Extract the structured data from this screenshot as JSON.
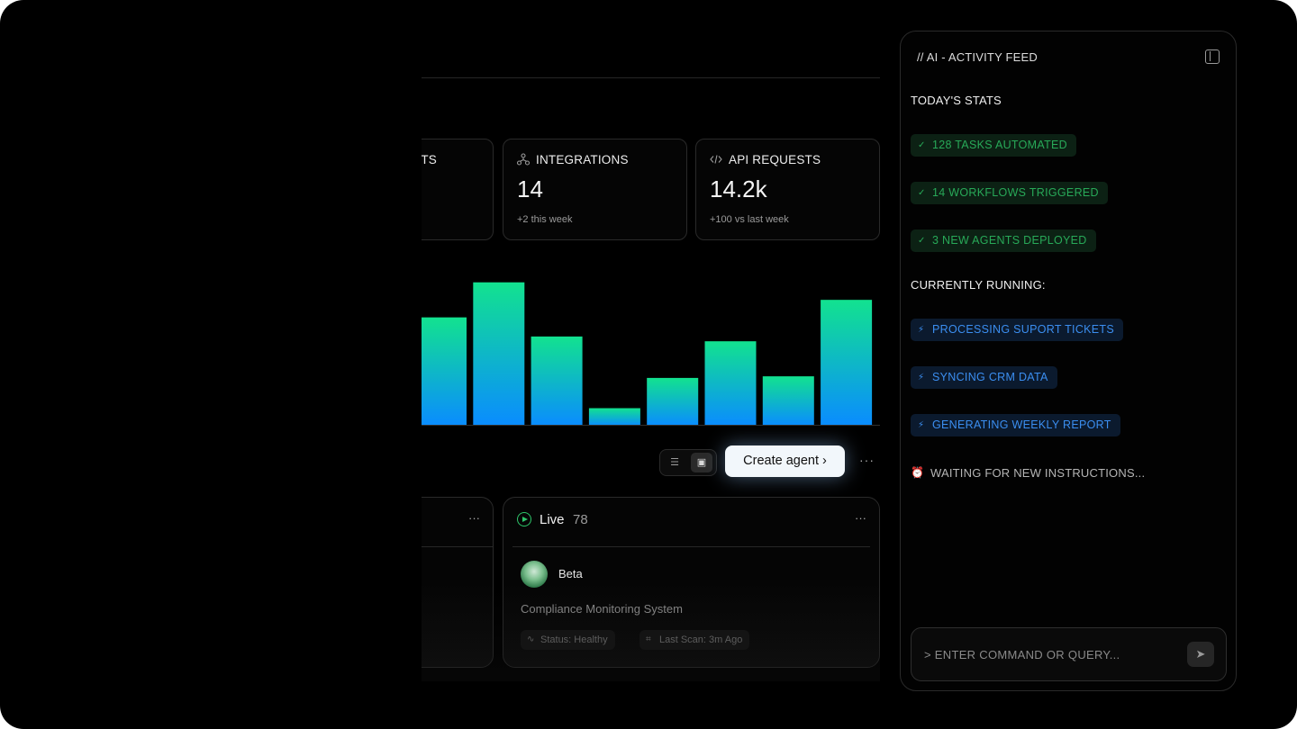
{
  "stats": [
    {
      "label": "TS",
      "value": "",
      "sub": "",
      "icon": "hidden-icon"
    },
    {
      "label": "INTEGRATIONS",
      "value": "14",
      "sub": "+2 this week",
      "icon": "integrations-icon"
    },
    {
      "label": "API REQUESTS",
      "value": "14.2k",
      "sub": "+100 vs last week",
      "icon": "code-icon"
    }
  ],
  "chart_data": {
    "type": "bar",
    "title": "",
    "xlabel": "",
    "ylabel": "",
    "values": [
      68,
      90,
      56,
      11,
      30,
      53,
      31,
      79
    ],
    "ylim": [
      0,
      100
    ],
    "grid": false,
    "colors": {
      "top": "#12e28f",
      "bottom": "#0a8cff"
    }
  },
  "toolbar": {
    "create_label": "Create agent",
    "create_chevron": "›",
    "more": "···",
    "list_icon": "☰",
    "board_icon": "▣"
  },
  "columns": {
    "left_more": "···",
    "live": {
      "title": "Live",
      "count": "78",
      "more": "···",
      "agent": {
        "name": "Beta",
        "description": "Compliance Monitoring System",
        "status": "Status: Healthy",
        "last_scan": "Last Scan: 3m Ago"
      }
    }
  },
  "feed": {
    "heading": "// AI - ACTIVITY FEED",
    "today_label": "TODAY'S STATS",
    "today": [
      "128 TASKS AUTOMATED",
      "14 WORKFLOWS TRIGGERED",
      "3 NEW AGENTS DEPLOYED"
    ],
    "running_label": "CURRENTLY RUNNING:",
    "running": [
      "PROCESSING SUPORT TICKETS",
      "SYNCING CRM DATA",
      "GENERATING WEEKLY REPORT"
    ],
    "waiting": "WAITING FOR NEW INSTRUCTIONS...",
    "command_placeholder": "> ENTER COMMAND OR QUERY...",
    "colors": {
      "green_tag": "#28a958",
      "blue_tag": "#3b8ef0"
    }
  }
}
